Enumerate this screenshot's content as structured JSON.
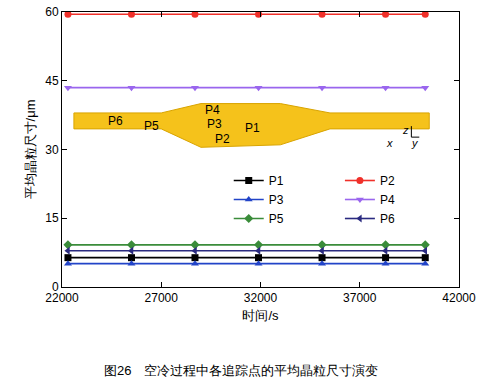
{
  "chart_data": {
    "type": "line",
    "title": "图26　空冷过程中各追踪点的平均晶粒尺寸演变",
    "x_label": "时间/s",
    "y_label": "平均晶粒尺寸/μm",
    "x": [
      22300,
      25500,
      28700,
      31900,
      35100,
      38300,
      40300
    ],
    "series": [
      {
        "name": "P1",
        "color": "#000000",
        "marker": "square",
        "values": [
          6.4,
          6.4,
          6.4,
          6.4,
          6.4,
          6.4,
          6.4
        ]
      },
      {
        "name": "P2",
        "color": "#f0302a",
        "marker": "circle",
        "values": [
          59.5,
          59.5,
          59.5,
          59.5,
          59.5,
          59.5,
          59.5
        ]
      },
      {
        "name": "P3",
        "color": "#2244c8",
        "marker": "triangle-up",
        "values": [
          5.1,
          5.1,
          5.1,
          5.1,
          5.1,
          5.1,
          5.1
        ]
      },
      {
        "name": "P4",
        "color": "#9a66ee",
        "marker": "triangle-down",
        "values": [
          43.5,
          43.5,
          43.5,
          43.5,
          43.5,
          43.5,
          43.5
        ]
      },
      {
        "name": "P5",
        "color": "#3a8c3a",
        "marker": "diamond",
        "values": [
          9.2,
          9.2,
          9.2,
          9.2,
          9.2,
          9.2,
          9.2
        ]
      },
      {
        "name": "P6",
        "color": "#2a2a80",
        "marker": "triangle-left",
        "values": [
          7.9,
          7.9,
          7.9,
          7.9,
          7.9,
          7.9,
          7.9
        ]
      }
    ],
    "xlim": [
      22000,
      42000
    ],
    "xticks": [
      22000,
      27000,
      32000,
      37000,
      42000
    ],
    "ylim": [
      0,
      60
    ],
    "yticks": [
      0,
      15,
      30,
      45,
      60
    ],
    "grid": false,
    "legend": "right",
    "annotations": [
      {
        "text": "P4",
        "x": 29600,
        "y": 38.6
      },
      {
        "text": "P6",
        "x": 24700,
        "y": 36.2
      },
      {
        "text": "P5",
        "x": 26500,
        "y": 35.2
      },
      {
        "text": "P3",
        "x": 29700,
        "y": 35.6
      },
      {
        "text": "P1",
        "x": 31600,
        "y": 34.6
      },
      {
        "text": "P2",
        "x": 30100,
        "y": 32.2
      },
      {
        "text": "z",
        "x": 39300,
        "y": 34.2
      },
      {
        "text": "x",
        "x": 38500,
        "y": 31.4
      },
      {
        "text": "y",
        "x": 39800,
        "y": 31.4
      }
    ]
  }
}
